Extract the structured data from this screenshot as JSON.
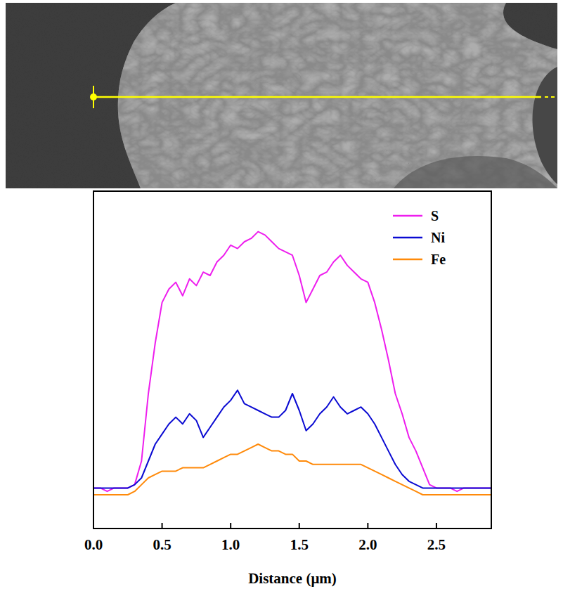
{
  "chart_data": {
    "type": "line",
    "x_label": "Distance (μm)",
    "x": [
      0,
      0.05,
      0.1,
      0.15,
      0.2,
      0.25,
      0.3,
      0.35,
      0.4,
      0.45,
      0.5,
      0.55,
      0.6,
      0.65,
      0.7,
      0.75,
      0.8,
      0.85,
      0.9,
      0.95,
      1.0,
      1.05,
      1.1,
      1.15,
      1.2,
      1.25,
      1.3,
      1.35,
      1.4,
      1.45,
      1.5,
      1.55,
      1.6,
      1.65,
      1.7,
      1.75,
      1.8,
      1.85,
      1.9,
      1.95,
      2.0,
      2.05,
      2.1,
      2.15,
      2.2,
      2.25,
      2.3,
      2.35,
      2.4,
      2.45,
      2.5,
      2.55,
      2.6,
      2.65,
      2.7,
      2.75,
      2.8,
      2.85,
      2.9
    ],
    "series": [
      {
        "name": "S",
        "color": "#ee1eee",
        "values": [
          12,
          12,
          11,
          12,
          12,
          12,
          13,
          20,
          40,
          55,
          67,
          71,
          73,
          69,
          74,
          72,
          76,
          75,
          79,
          81,
          84,
          83,
          85,
          86,
          88,
          87,
          85,
          83,
          82,
          81,
          75,
          67,
          71,
          75,
          76,
          79,
          81,
          78,
          76,
          74,
          73,
          67,
          59,
          50,
          40,
          34,
          27,
          23,
          18,
          13,
          12,
          12,
          12,
          11,
          12,
          12,
          12,
          12,
          12
        ]
      },
      {
        "name": "Ni",
        "color": "#0a0ad2",
        "values": [
          12,
          12,
          12,
          12,
          12,
          12,
          13,
          15,
          20,
          25,
          28,
          31,
          33,
          31,
          34,
          32,
          27,
          30,
          33,
          36,
          38,
          41,
          37,
          36,
          35,
          34,
          33,
          33,
          35,
          40,
          35,
          29,
          31,
          34,
          36,
          39,
          36,
          34,
          35,
          36,
          34,
          31,
          27,
          23,
          19,
          16,
          14,
          13,
          12,
          12,
          12,
          12,
          12,
          12,
          12,
          12,
          12,
          12,
          12
        ]
      },
      {
        "name": "Fe",
        "color": "#ff8a0a",
        "values": [
          10,
          10,
          10,
          10,
          10,
          10,
          11,
          13,
          15,
          16,
          17,
          17,
          17,
          18,
          18,
          18,
          18,
          19,
          20,
          21,
          22,
          22,
          23,
          24,
          25,
          24,
          23,
          23,
          22,
          22,
          20,
          20,
          19,
          19,
          19,
          19,
          19,
          19,
          19,
          19,
          18,
          17,
          16,
          15,
          14,
          13,
          12,
          11,
          10,
          10,
          10,
          10,
          10,
          10,
          10,
          10,
          10,
          10,
          10
        ]
      }
    ],
    "xlim": [
      0,
      2.9
    ],
    "xticks": [
      {
        "value": 0,
        "label": "0.0"
      },
      0.5,
      {
        "value": 1,
        "label": "1.0"
      },
      1.5,
      {
        "value": 2,
        "label": "2.0"
      },
      2.5
    ],
    "ylim": [
      0,
      100
    ],
    "tick_labels": "x",
    "legend": "top-right",
    "grid": false
  }
}
